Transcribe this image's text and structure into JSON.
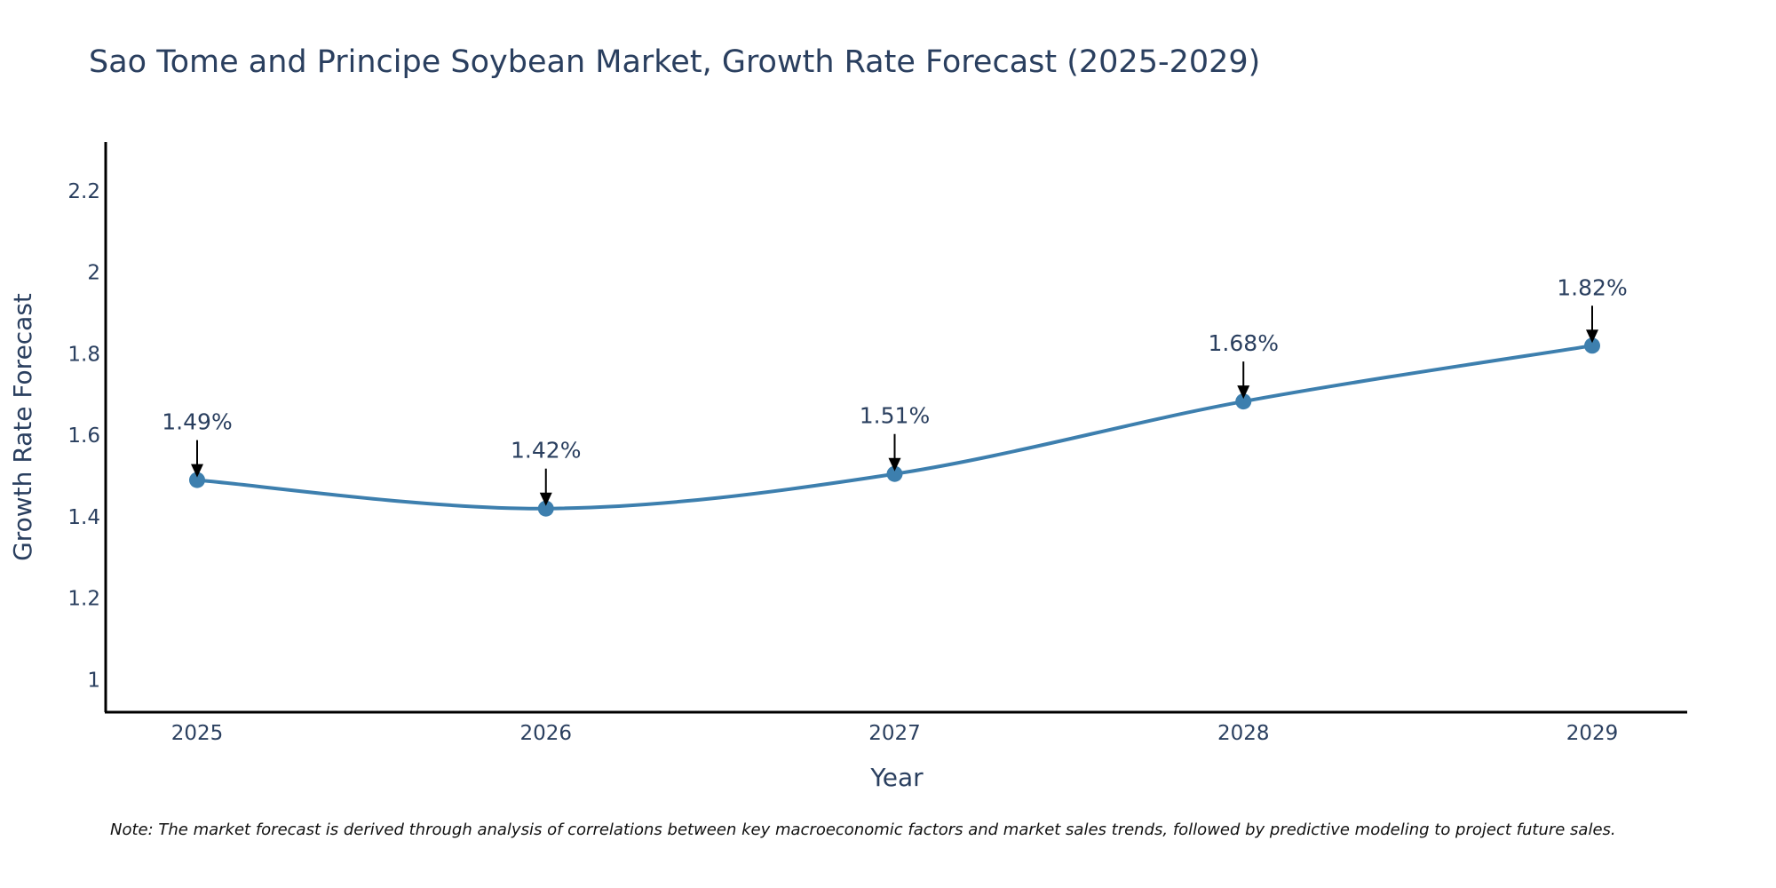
{
  "chart_data": {
    "type": "line",
    "title": "Sao Tome and Principe Soybean Market, Growth Rate Forecast (2025-2029)",
    "xlabel": "Year",
    "ylabel": "Growth Rate Forecast",
    "categories": [
      "2025",
      "2026",
      "2027",
      "2028",
      "2029"
    ],
    "series": [
      {
        "name": "Growth Rate Forecast",
        "values": [
          1.49,
          1.42,
          1.505,
          1.683,
          1.82
        ],
        "labels": [
          "1.49%",
          "1.42%",
          "1.51%",
          "1.68%",
          "1.82%"
        ],
        "color": "#3d7fae"
      }
    ],
    "ylim": [
      0.92,
      2.32
    ],
    "yticks": [
      1,
      1.2,
      1.4,
      1.6,
      1.8,
      2,
      2.2
    ],
    "ytick_labels": [
      "1",
      "1.2",
      "1.4",
      "1.6",
      "1.8",
      "2",
      "2.2"
    ],
    "grid": false,
    "note": "Note: The market forecast is derived through analysis of correlations between key macroeconomic factors and market sales trends, followed by predictive modeling to project future sales."
  }
}
